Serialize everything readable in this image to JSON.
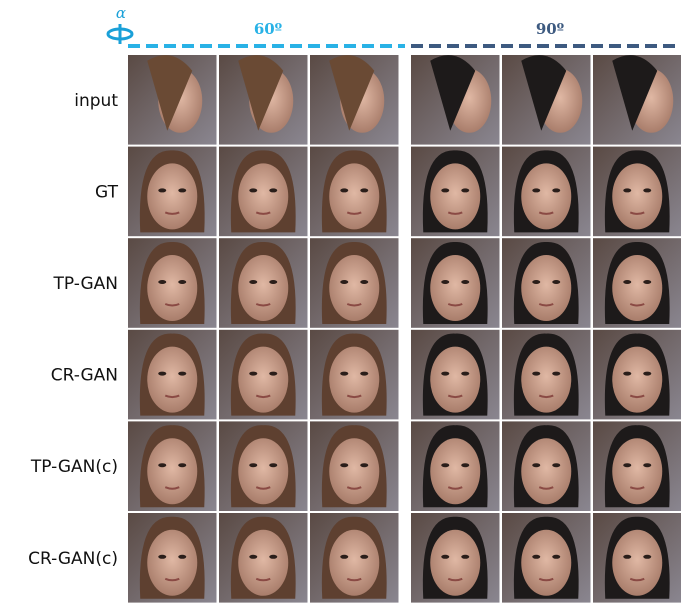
{
  "header": {
    "symbol": "α",
    "groups": [
      "60º",
      "90º"
    ]
  },
  "rows": [
    "input",
    "GT",
    "TP-GAN",
    "CR-GAN",
    "TP-GAN(c)",
    "CR-GAN(c)"
  ]
}
